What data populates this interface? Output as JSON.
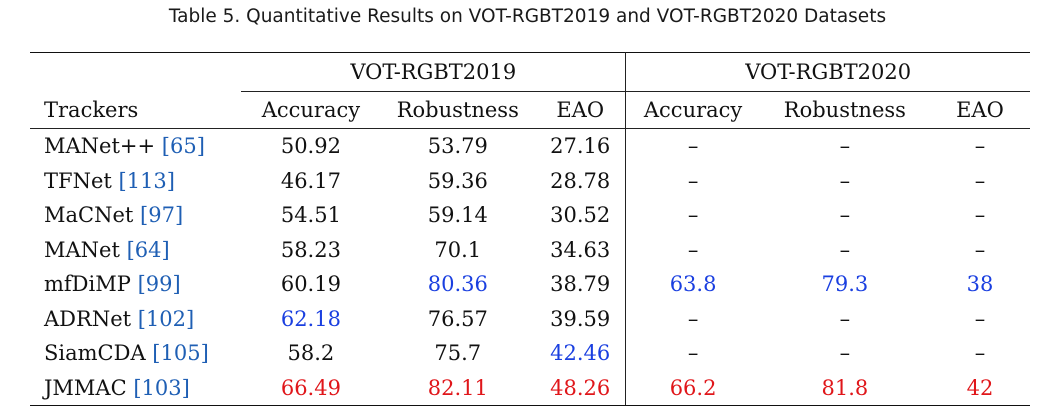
{
  "caption": "Table 5.  Quantitative Results on VOT-RGBT2019 and VOT-RGBT2020 Datasets",
  "groups": [
    "VOT-RGBT2019",
    "VOT-RGBT2020"
  ],
  "columns": [
    "Trackers",
    "Accuracy",
    "Robustness",
    "EAO",
    "Accuracy",
    "Robustness",
    "EAO"
  ],
  "colors": {
    "best": "#e0161a",
    "second": "#1a3fe0",
    "ref": "#1f5fb4"
  },
  "rows": [
    {
      "name": "MANet++",
      "ref": "[65]",
      "v": [
        "50.92",
        "53.79",
        "27.16",
        "–",
        "–",
        "–"
      ],
      "c": [
        "",
        "",
        "",
        "",
        "",
        ""
      ]
    },
    {
      "name": "TFNet",
      "ref": "[113]",
      "v": [
        "46.17",
        "59.36",
        "28.78",
        "–",
        "–",
        "–"
      ],
      "c": [
        "",
        "",
        "",
        "",
        "",
        ""
      ]
    },
    {
      "name": "MaCNet",
      "ref": "[97]",
      "v": [
        "54.51",
        "59.14",
        "30.52",
        "–",
        "–",
        "–"
      ],
      "c": [
        "",
        "",
        "",
        "",
        "",
        ""
      ]
    },
    {
      "name": "MANet",
      "ref": "[64]",
      "v": [
        "58.23",
        "70.1",
        "34.63",
        "–",
        "–",
        "–"
      ],
      "c": [
        "",
        "",
        "",
        "",
        "",
        ""
      ]
    },
    {
      "name": "mfDiMP",
      "ref": "[99]",
      "v": [
        "60.19",
        "80.36",
        "38.79",
        "63.8",
        "79.3",
        "38"
      ],
      "c": [
        "",
        "blue",
        "",
        "blue",
        "blue",
        "blue"
      ]
    },
    {
      "name": "ADRNet",
      "ref": "[102]",
      "v": [
        "62.18",
        "76.57",
        "39.59",
        "–",
        "–",
        "–"
      ],
      "c": [
        "blue",
        "",
        "",
        "",
        "",
        ""
      ]
    },
    {
      "name": "SiamCDA",
      "ref": "[105]",
      "v": [
        "58.2",
        "75.7",
        "42.46",
        "–",
        "–",
        "–"
      ],
      "c": [
        "",
        "",
        "blue",
        "",
        "",
        ""
      ]
    },
    {
      "name": "JMMAC",
      "ref": "[103]",
      "v": [
        "66.49",
        "82.11",
        "48.26",
        "66.2",
        "81.8",
        "42"
      ],
      "c": [
        "red",
        "red",
        "red",
        "red",
        "red",
        "red"
      ]
    }
  ]
}
